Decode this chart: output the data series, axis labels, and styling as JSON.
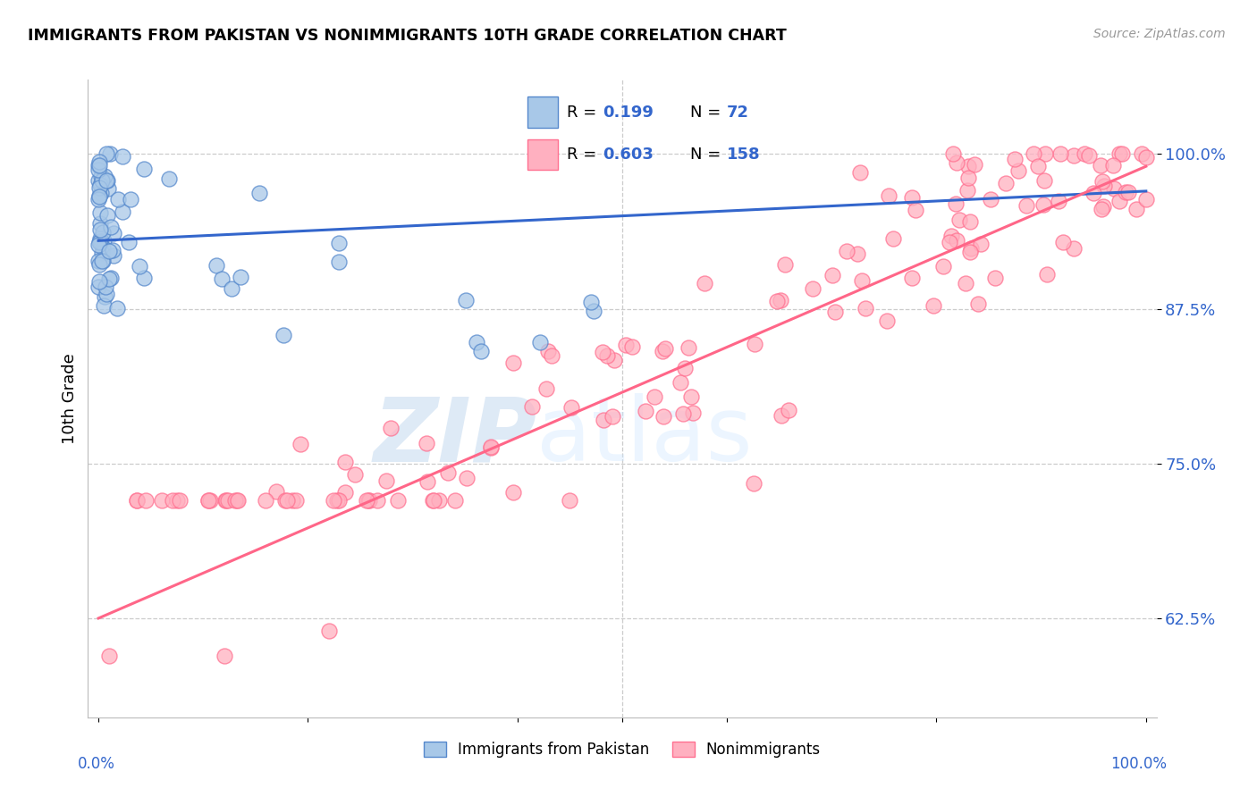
{
  "title": "IMMIGRANTS FROM PAKISTAN VS NONIMMIGRANTS 10TH GRADE CORRELATION CHART",
  "source": "Source: ZipAtlas.com",
  "ylabel": "10th Grade",
  "ytick_labels": [
    "62.5%",
    "75.0%",
    "87.5%",
    "100.0%"
  ],
  "ytick_values": [
    0.625,
    0.75,
    0.875,
    1.0
  ],
  "xlim": [
    -0.01,
    1.01
  ],
  "ylim": [
    0.545,
    1.06
  ],
  "blue_R": 0.199,
  "blue_N": 72,
  "pink_R": 0.603,
  "pink_N": 158,
  "blue_face_color": "#A8C8E8",
  "blue_edge_color": "#5588CC",
  "pink_face_color": "#FFB0C0",
  "pink_edge_color": "#FF7090",
  "blue_line_color": "#3366CC",
  "pink_line_color": "#FF6688",
  "legend_label_blue": "Immigrants from Pakistan",
  "legend_label_pink": "Nonimmigrants",
  "blue_trend_x": [
    0.0,
    1.0
  ],
  "blue_trend_y": [
    0.93,
    0.97
  ],
  "pink_trend_x": [
    0.0,
    1.0
  ],
  "pink_trend_y": [
    0.625,
    0.99
  ]
}
